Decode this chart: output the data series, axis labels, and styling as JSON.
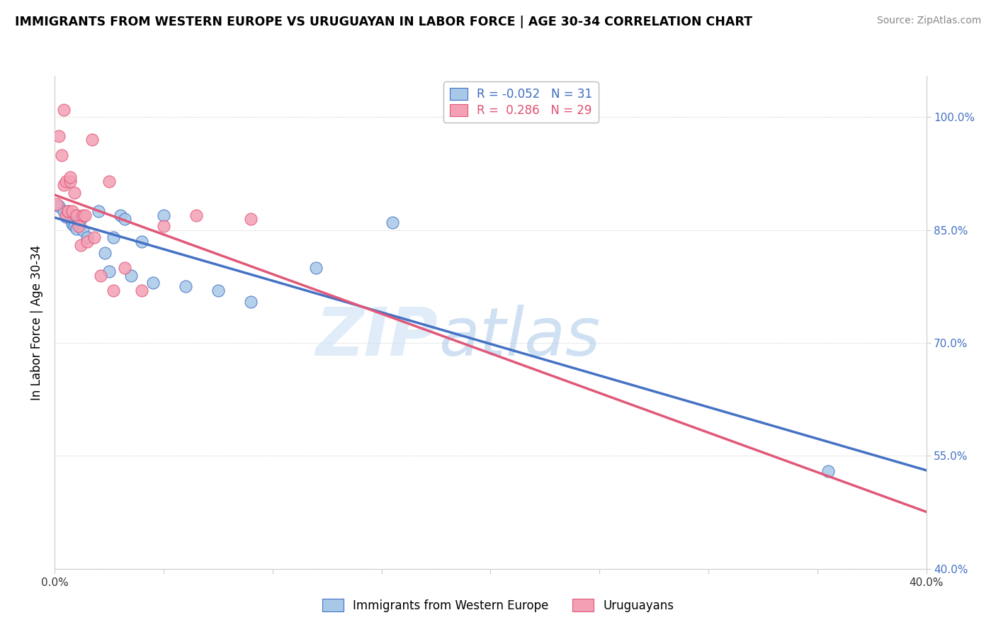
{
  "title": "IMMIGRANTS FROM WESTERN EUROPE VS URUGUAYAN IN LABOR FORCE | AGE 30-34 CORRELATION CHART",
  "source": "Source: ZipAtlas.com",
  "ylabel": "In Labor Force | Age 30-34",
  "blue_R": -0.052,
  "blue_N": 31,
  "pink_R": 0.286,
  "pink_N": 29,
  "xlim": [
    0.0,
    0.4
  ],
  "ylim": [
    0.4,
    1.055
  ],
  "yticks": [
    0.4,
    0.55,
    0.7,
    0.85,
    1.0
  ],
  "ytick_labels": [
    "40.0%",
    "55.0%",
    "70.0%",
    "85.0%",
    "100.0%"
  ],
  "xticks": [
    0.0,
    0.05,
    0.1,
    0.15,
    0.2,
    0.25,
    0.3,
    0.35,
    0.4
  ],
  "xtick_labels": [
    "0.0%",
    "",
    "",
    "",
    "",
    "",
    "",
    "",
    "40.0%"
  ],
  "blue_color": "#a8c8e8",
  "pink_color": "#f4a0b4",
  "blue_edge_color": "#4472c4",
  "pink_edge_color": "#e05878",
  "blue_line_color": "#4472c4",
  "pink_line_color": "#e05878",
  "watermark_zip": "ZIP",
  "watermark_atlas": "atlas",
  "legend_label_blue": "Immigrants from Western Europe",
  "legend_label_pink": "Uruguayans",
  "blue_x": [
    0.002,
    0.004,
    0.005,
    0.006,
    0.007,
    0.008,
    0.008,
    0.009,
    0.009,
    0.01,
    0.01,
    0.011,
    0.012,
    0.013,
    0.015,
    0.02,
    0.023,
    0.025,
    0.027,
    0.03,
    0.032,
    0.035,
    0.04,
    0.045,
    0.05,
    0.06,
    0.075,
    0.09,
    0.12,
    0.155,
    0.355
  ],
  "blue_y": [
    0.882,
    0.875,
    0.868,
    0.87,
    0.87,
    0.86,
    0.858,
    0.86,
    0.855,
    0.87,
    0.852,
    0.86,
    0.865,
    0.85,
    0.84,
    0.875,
    0.82,
    0.795,
    0.84,
    0.87,
    0.865,
    0.79,
    0.835,
    0.78,
    0.87,
    0.775,
    0.77,
    0.755,
    0.8,
    0.86,
    0.53
  ],
  "pink_x": [
    0.001,
    0.002,
    0.003,
    0.004,
    0.004,
    0.005,
    0.005,
    0.006,
    0.006,
    0.007,
    0.007,
    0.008,
    0.009,
    0.01,
    0.011,
    0.012,
    0.013,
    0.014,
    0.015,
    0.017,
    0.018,
    0.021,
    0.025,
    0.027,
    0.032,
    0.04,
    0.05,
    0.065,
    0.09
  ],
  "pink_y": [
    0.885,
    0.975,
    0.95,
    0.91,
    1.01,
    0.87,
    0.915,
    0.875,
    0.875,
    0.915,
    0.92,
    0.875,
    0.9,
    0.87,
    0.855,
    0.83,
    0.87,
    0.87,
    0.835,
    0.97,
    0.84,
    0.79,
    0.915,
    0.77,
    0.8,
    0.77,
    0.855,
    0.87,
    0.865
  ]
}
